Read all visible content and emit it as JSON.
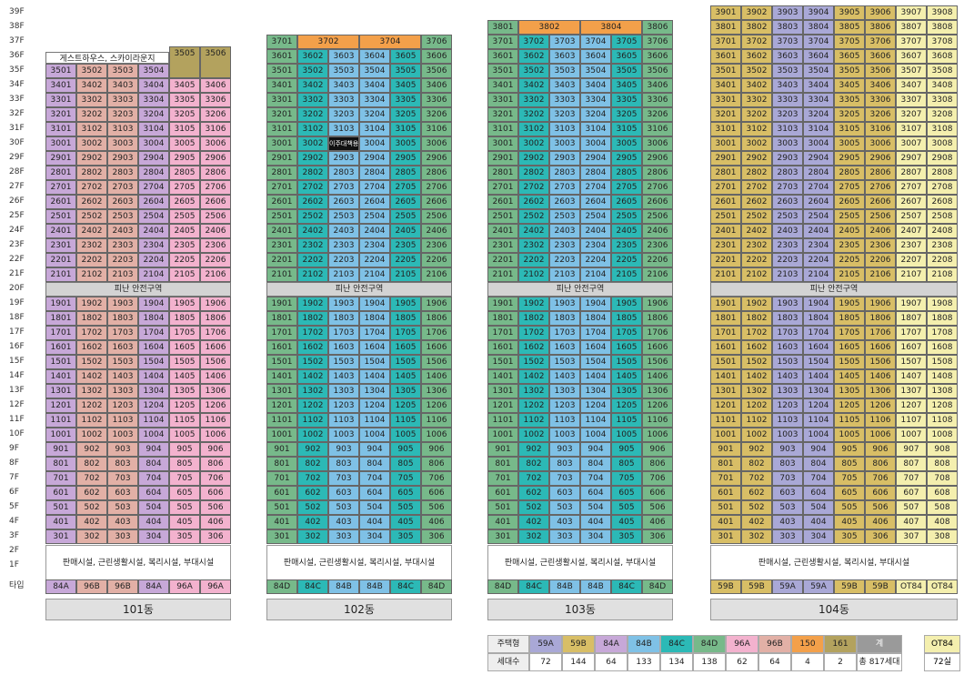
{
  "floors": [
    "39F",
    "38F",
    "37F",
    "36F",
    "35F",
    "34F",
    "33F",
    "32F",
    "31F",
    "30F",
    "29F",
    "28F",
    "27F",
    "26F",
    "25F",
    "24F",
    "23F",
    "22F",
    "21F",
    "20F",
    "19F",
    "18F",
    "17F",
    "16F",
    "15F",
    "14F",
    "13F",
    "12F",
    "11F",
    "10F",
    "9F",
    "8F",
    "7F",
    "6F",
    "5F",
    "4F",
    "3F",
    "2F",
    "1F"
  ],
  "type_row_label": "타입",
  "refuge_label": "피난 안전구역",
  "facility_label": "판매시설, 근린생활시설, 복리시설, 부대시설",
  "guest_label": "게스트하우스, 스카이라운지",
  "special_unit_label": "이주대책용",
  "buildings": [
    {
      "name": "101동",
      "top_floor": 35,
      "types": [
        "84A",
        "96B",
        "96B",
        "84A",
        "96A",
        "96A"
      ],
      "penthouse": [
        "3505",
        "3506"
      ]
    },
    {
      "name": "102동",
      "top_floor": 37,
      "types": [
        "84D",
        "84C",
        "84B",
        "84B",
        "84C",
        "84D"
      ],
      "top_row": [
        "3701",
        "3702",
        "3704",
        "3706"
      ]
    },
    {
      "name": "103동",
      "top_floor": 38,
      "types": [
        "84D",
        "84C",
        "84B",
        "84B",
        "84C",
        "84D"
      ],
      "top_row": [
        "3801",
        "3802",
        "3804",
        "3806"
      ]
    },
    {
      "name": "104동",
      "top_floor": 39,
      "types": [
        "59B",
        "59B",
        "59A",
        "59A",
        "59B",
        "59B",
        "OT84",
        "OT84"
      ]
    }
  ],
  "legend": {
    "row1_label": "주택형",
    "row2_label": "세대수",
    "items": [
      {
        "type": "59A",
        "count": "72"
      },
      {
        "type": "59B",
        "count": "144"
      },
      {
        "type": "84A",
        "count": "64"
      },
      {
        "type": "84B",
        "count": "133"
      },
      {
        "type": "84C",
        "count": "134"
      },
      {
        "type": "84D",
        "count": "138"
      },
      {
        "type": "96A",
        "count": "62"
      },
      {
        "type": "96B",
        "count": "64"
      },
      {
        "type": "150",
        "count": "4"
      },
      {
        "type": "161",
        "count": "2"
      }
    ],
    "total_label": "계",
    "total_value": "총 817세대",
    "ot_type": "OT84",
    "ot_count": "72실"
  },
  "colors": {
    "59A": "#a9a8d6",
    "59B": "#d8be66",
    "84A": "#c7a8d8",
    "84B": "#7fc1e6",
    "84C": "#2cb9b6",
    "84D": "#77b98a",
    "96A": "#f3b2ce",
    "96B": "#e2b0a6",
    "150": "#f3a04a",
    "161": "#b3a25e",
    "OT84": "#f4efae"
  }
}
